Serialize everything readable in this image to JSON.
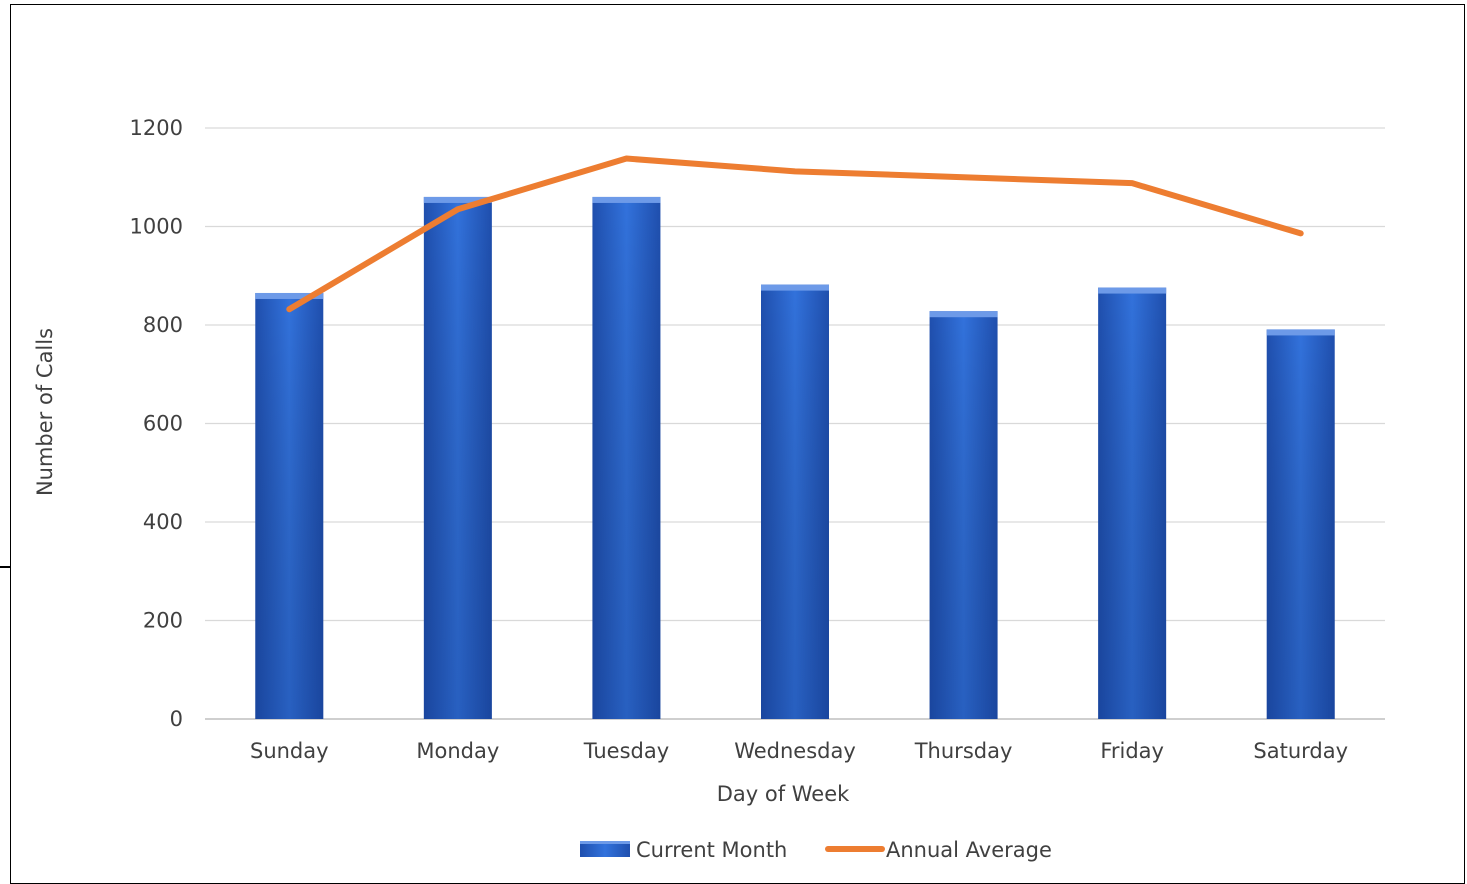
{
  "chart_data": {
    "type": "bar",
    "title": "",
    "xlabel": "Day of Week",
    "ylabel": "Number of Calls",
    "ylim": [
      0,
      1200
    ],
    "yticks": [
      0,
      200,
      400,
      600,
      800,
      1000,
      1200
    ],
    "grid": true,
    "legend_position": "bottom",
    "categories": [
      "Sunday",
      "Monday",
      "Tuesday",
      "Wednesday",
      "Thursday",
      "Friday",
      "Saturday"
    ],
    "series": [
      {
        "name": "Current Month",
        "type": "bar",
        "color": "#2e66d1",
        "values": [
          865,
          1060,
          1060,
          882,
          828,
          876,
          791
        ]
      },
      {
        "name": "Annual Average",
        "type": "line",
        "color": "#ed7d31",
        "values": [
          832,
          1035,
          1138,
          1112,
          1100,
          1088,
          986
        ]
      }
    ]
  }
}
